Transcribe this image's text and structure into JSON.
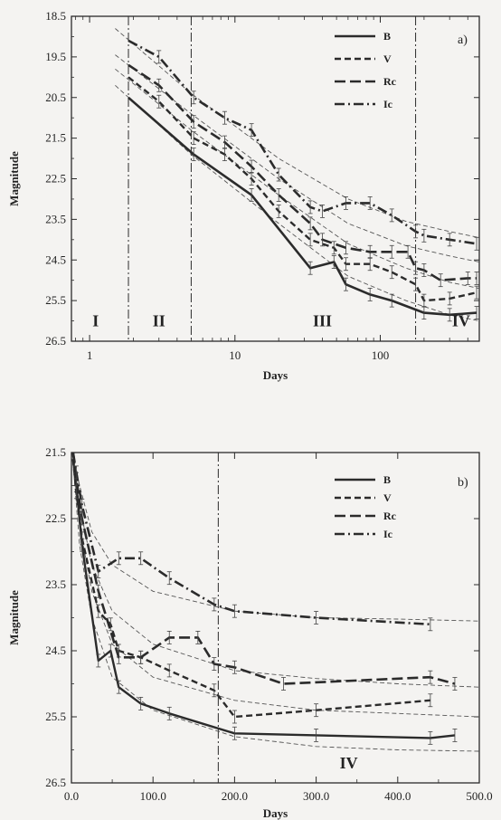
{
  "chart_data": [
    {
      "type": "line",
      "panel_label": "a)",
      "xlabel": "Days",
      "ylabel": "Magnitude",
      "xscale": "log",
      "xlim": [
        0.75,
        480
      ],
      "ylim": [
        18.5,
        26.5
      ],
      "y_inverted": true,
      "xticks": [
        1,
        10,
        100
      ],
      "xtick_labels": [
        "1",
        "10",
        "100"
      ],
      "yticks": [
        18.5,
        19.5,
        20.5,
        21.5,
        22.5,
        23.5,
        24.5,
        25.5,
        26.5
      ],
      "ytick_labels": [
        "18.5",
        "19.5",
        "20.5",
        "21.5",
        "22.5",
        "23.5",
        "24.5",
        "25.5",
        "26.5"
      ],
      "legend_position": "top-right",
      "vlines": [
        1.85,
        5.0,
        175
      ],
      "phases": [
        {
          "label": "I",
          "x": 1.1,
          "y": 26.0
        },
        {
          "label": "II",
          "x": 3.0,
          "y": 26.0
        },
        {
          "label": "III",
          "x": 40,
          "y": 26.0
        },
        {
          "label": "IV",
          "x": 360,
          "y": 26.0
        }
      ],
      "series": [
        {
          "name": "B",
          "style": "solid",
          "width": 2.6,
          "x": [
            1.85,
            5.2,
            13,
            33,
            48,
            58,
            85,
            120,
            200,
            300,
            460
          ],
          "y": [
            20.5,
            21.9,
            22.9,
            24.7,
            24.55,
            25.1,
            25.35,
            25.5,
            25.8,
            25.85,
            25.8
          ]
        },
        {
          "name": "V",
          "style": "dash",
          "width": 2.4,
          "x": [
            1.85,
            3.0,
            5.2,
            8.5,
            13,
            20,
            33,
            48,
            58,
            85,
            120,
            175,
            200,
            300,
            460
          ],
          "y": [
            20.0,
            20.6,
            21.5,
            21.9,
            22.5,
            23.3,
            24.0,
            24.2,
            24.6,
            24.6,
            24.8,
            25.1,
            25.5,
            25.45,
            25.3
          ]
        },
        {
          "name": "Rc",
          "style": "longdash",
          "width": 2.6,
          "x": [
            1.85,
            3.0,
            5.2,
            8.5,
            13,
            20,
            33,
            40,
            58,
            85,
            120,
            155,
            175,
            200,
            260,
            400,
            460
          ],
          "y": [
            19.7,
            20.2,
            21.1,
            21.6,
            22.2,
            22.9,
            23.6,
            24.0,
            24.2,
            24.3,
            24.3,
            24.3,
            24.7,
            24.75,
            25.0,
            24.95,
            24.95
          ]
        },
        {
          "name": "Ic",
          "style": "dashdot",
          "width": 2.6,
          "x": [
            1.85,
            3.0,
            5.2,
            8.5,
            13,
            20,
            33,
            40,
            58,
            85,
            120,
            175,
            200,
            300,
            460
          ],
          "y": [
            19.1,
            19.5,
            20.5,
            21.0,
            21.3,
            22.4,
            23.2,
            23.3,
            23.1,
            23.1,
            23.4,
            23.8,
            23.9,
            24.0,
            24.1
          ]
        }
      ],
      "fits": [
        {
          "x": [
            1.5,
            5,
            20,
            60,
            150,
            300,
            480
          ],
          "y": [
            20.2,
            21.9,
            23.6,
            24.9,
            25.5,
            25.85,
            26.0
          ]
        },
        {
          "x": [
            1.5,
            5,
            20,
            60,
            150,
            300,
            480
          ],
          "y": [
            19.8,
            21.3,
            22.9,
            24.1,
            24.7,
            25.05,
            25.2
          ]
        },
        {
          "x": [
            1.5,
            5,
            20,
            60,
            150,
            300,
            480
          ],
          "y": [
            19.45,
            20.9,
            22.5,
            23.6,
            24.15,
            24.4,
            24.55
          ]
        },
        {
          "x": [
            1.5,
            5,
            20,
            60,
            150,
            300,
            480
          ],
          "y": [
            18.8,
            20.4,
            22.0,
            23.0,
            23.55,
            23.8,
            23.95
          ]
        }
      ]
    },
    {
      "type": "line",
      "panel_label": "b)",
      "xlabel": "Days",
      "ylabel": "Magnitude",
      "xscale": "linear",
      "xlim": [
        0,
        500
      ],
      "ylim": [
        21.5,
        26.5
      ],
      "y_inverted": true,
      "xticks": [
        0,
        100,
        200,
        300,
        400,
        500
      ],
      "xtick_labels": [
        "0.0",
        "100.0",
        "200.0",
        "300.0",
        "400.0",
        "500.0"
      ],
      "yticks": [
        21.5,
        22.5,
        23.5,
        24.5,
        25.5,
        26.5
      ],
      "ytick_labels": [
        "21.5",
        "22.5",
        "23.5",
        "24.5",
        "25.5",
        "26.5"
      ],
      "legend_position": "top-right",
      "vlines": [
        180
      ],
      "phases": [
        {
          "label": "IV",
          "x": 340,
          "y": 26.2
        }
      ],
      "series": [
        {
          "name": "B",
          "style": "solid",
          "width": 2.4,
          "x": [
            2,
            6,
            13,
            33,
            48,
            58,
            85,
            120,
            200,
            300,
            440,
            470
          ],
          "y": [
            21.6,
            22.0,
            22.9,
            24.65,
            24.5,
            25.05,
            25.3,
            25.45,
            25.75,
            25.78,
            25.82,
            25.78
          ]
        },
        {
          "name": "V",
          "style": "dash",
          "width": 2.4,
          "x": [
            2,
            6,
            13,
            33,
            48,
            58,
            85,
            120,
            175,
            200,
            300,
            440
          ],
          "y": [
            21.6,
            22.1,
            22.8,
            23.9,
            24.1,
            24.5,
            24.6,
            24.8,
            25.1,
            25.5,
            25.4,
            25.25
          ]
        },
        {
          "name": "Rc",
          "style": "longdash",
          "width": 2.6,
          "x": [
            2,
            6,
            13,
            33,
            58,
            85,
            120,
            155,
            175,
            200,
            260,
            440,
            470
          ],
          "y": [
            21.5,
            21.9,
            22.5,
            23.6,
            24.6,
            24.6,
            24.3,
            24.3,
            24.7,
            24.75,
            25.0,
            24.9,
            25.0
          ]
        },
        {
          "name": "Ic",
          "style": "dashdot",
          "width": 2.6,
          "x": [
            2,
            6,
            13,
            33,
            58,
            85,
            120,
            175,
            200,
            300,
            440
          ],
          "y": [
            21.5,
            21.8,
            22.3,
            23.3,
            23.1,
            23.1,
            23.4,
            23.8,
            23.9,
            24.0,
            24.1
          ]
        }
      ],
      "fits": [
        {
          "x": [
            1,
            10,
            25,
            50,
            100,
            200,
            300,
            400,
            500
          ],
          "y": [
            21.5,
            22.9,
            24.0,
            24.9,
            25.4,
            25.8,
            25.95,
            26.0,
            26.02
          ]
        },
        {
          "x": [
            1,
            10,
            25,
            50,
            100,
            200,
            300,
            400,
            500
          ],
          "y": [
            21.5,
            22.6,
            23.6,
            24.4,
            24.9,
            25.25,
            25.4,
            25.45,
            25.5
          ]
        },
        {
          "x": [
            1,
            10,
            25,
            50,
            100,
            200,
            300,
            400,
            500
          ],
          "y": [
            21.5,
            22.3,
            23.2,
            23.9,
            24.4,
            24.8,
            24.92,
            25.0,
            25.05
          ]
        },
        {
          "x": [
            1,
            10,
            25,
            50,
            100,
            200,
            300,
            400,
            500
          ],
          "y": [
            21.5,
            22.0,
            22.7,
            23.2,
            23.6,
            23.9,
            24.0,
            24.02,
            24.05
          ]
        }
      ]
    }
  ]
}
